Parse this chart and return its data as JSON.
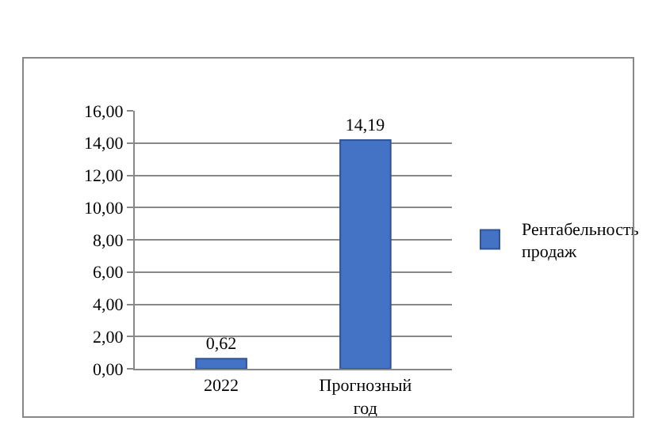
{
  "chart_data": {
    "type": "bar",
    "categories": [
      "2022",
      "Прогнозный год"
    ],
    "series": [
      {
        "name": "Рентабельность продаж",
        "color": "#4472c4",
        "values": [
          0.62,
          14.19
        ],
        "value_labels": [
          "0,62",
          "14,19"
        ]
      }
    ],
    "ylim": [
      0,
      16
    ],
    "yticks": [
      {
        "value": 0,
        "label": "0,00"
      },
      {
        "value": 2,
        "label": "2,00"
      },
      {
        "value": 4,
        "label": "4,00"
      },
      {
        "value": 6,
        "label": "6,00"
      },
      {
        "value": 8,
        "label": "8,00"
      },
      {
        "value": 10,
        "label": "10,00"
      },
      {
        "value": 12,
        "label": "12,00"
      },
      {
        "value": 14,
        "label": "14,00"
      },
      {
        "value": 16,
        "label": "16,00"
      }
    ],
    "grid": true,
    "legend": "right"
  }
}
